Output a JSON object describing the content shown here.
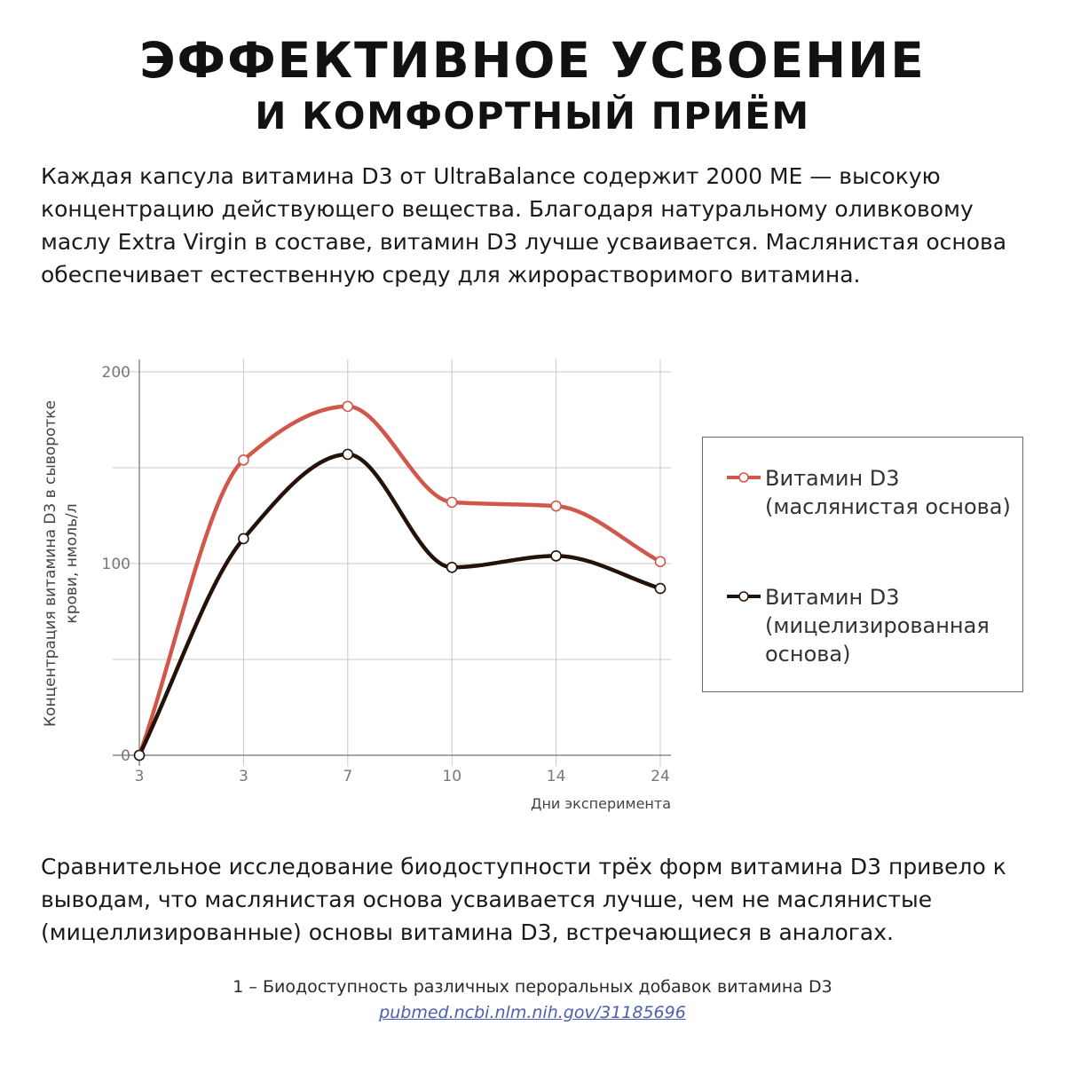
{
  "headline": {
    "line1": "ЭФФЕКТИВНОЕ УСВОЕНИЕ",
    "line2": "И КОМФОРТНЫЙ ПРИЁМ"
  },
  "intro": "Каждая капсула витамина D3 от UltraBalance содержит 2000 МЕ — высокую концентрацию действующего вещества. Благодаря натуральному оливковому маслу Extra Virgin в составе, витамин D3 лучше усваивается. Маслянистая основа обеспечивает естественную среду для жирорастворимого витамина.",
  "conclusion": "Сравнительное исследование биодоступности трёх форм витамина D3 привело к выводам, что маслянистая основа усваивается лучше, чем не маслянистые (мицеллизированные) основы витамина D3, встречающиеся в аналогах.",
  "footnote": {
    "text": "1 – Биодоступность различных пероральных добавок витамина D3",
    "link": "pubmed.ncbi.nlm.nih.gov/31185696"
  },
  "colors": {
    "oil": "#d0574a",
    "micellar": "#241208",
    "grid": "#c8c8c8",
    "axis": "#8a8a8a",
    "tick_text": "#777777"
  },
  "chart_data": {
    "type": "line",
    "categories": [
      "3",
      "3",
      "7",
      "10",
      "14",
      "24"
    ],
    "series": [
      {
        "name": "Витамин D3 (маслянистая основа)",
        "values": [
          0,
          154,
          182,
          132,
          130,
          101
        ]
      },
      {
        "name": "Витамин D3 (мицелизированная основа)",
        "values": [
          0,
          113,
          157,
          98,
          104,
          87
        ]
      }
    ],
    "xlabel": "Дни эксперимента",
    "ylabel": "Концентрация витамина D3 в сыворотке крови, нмоль/л",
    "ylim": [
      0,
      200
    ],
    "yticks": [
      0,
      100,
      200
    ],
    "grid": true,
    "smooth": true,
    "legend_position": "right"
  }
}
